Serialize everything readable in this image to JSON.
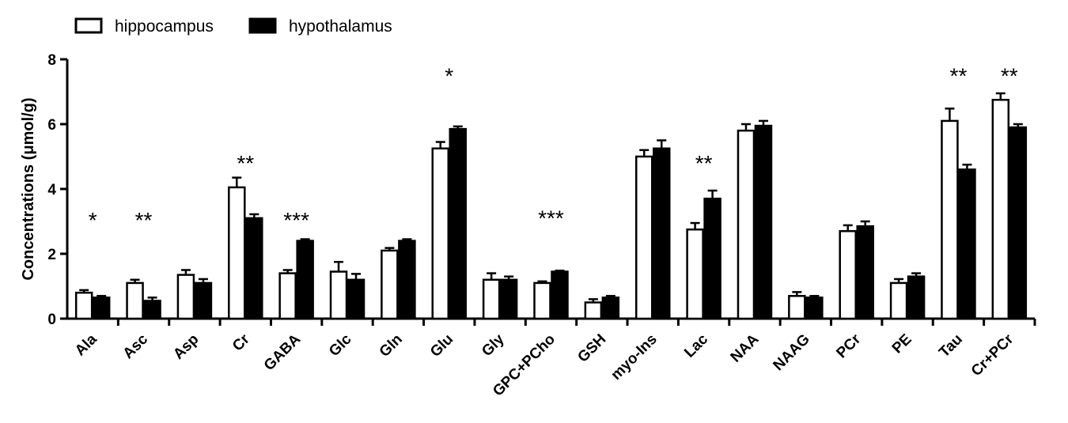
{
  "chart_data": {
    "type": "bar",
    "ylabel": "Concentrations (μmol/g)",
    "ylim": [
      0,
      8
    ],
    "yticks": [
      0,
      2,
      4,
      6,
      8
    ],
    "grid": false,
    "legend_position": "top-left",
    "categories": [
      "Ala",
      "Asc",
      "Asp",
      "Cr",
      "GABA",
      "Glc",
      "Gln",
      "Glu",
      "Gly",
      "GPC+PCho",
      "GSH",
      "myo-Ins",
      "Lac",
      "NAA",
      "NAAG",
      "PCr",
      "PE",
      "Tau",
      "Cr+PCr"
    ],
    "series": [
      {
        "name": "hippocampus",
        "fill": "#ffffff",
        "values": [
          0.8,
          1.1,
          1.35,
          4.05,
          1.4,
          1.45,
          2.1,
          5.25,
          1.2,
          1.1,
          0.5,
          5.0,
          2.75,
          5.8,
          0.7,
          2.7,
          1.1,
          6.1,
          6.75
        ],
        "errors": [
          0.08,
          0.1,
          0.15,
          0.3,
          0.1,
          0.3,
          0.08,
          0.2,
          0.2,
          0.05,
          0.1,
          0.2,
          0.2,
          0.2,
          0.12,
          0.18,
          0.12,
          0.38,
          0.2
        ]
      },
      {
        "name": "hypothalamus",
        "fill": "#000000",
        "values": [
          0.65,
          0.55,
          1.1,
          3.1,
          2.4,
          1.2,
          2.4,
          5.85,
          1.2,
          1.45,
          0.65,
          5.25,
          3.7,
          5.95,
          0.65,
          2.85,
          1.3,
          4.6,
          5.9
        ],
        "errors": [
          0.05,
          0.1,
          0.12,
          0.12,
          0.05,
          0.18,
          0.05,
          0.08,
          0.1,
          0.03,
          0.05,
          0.25,
          0.25,
          0.15,
          0.05,
          0.15,
          0.1,
          0.15,
          0.1
        ]
      }
    ],
    "annotations": [
      {
        "category": "Ala",
        "text": "*",
        "y": 3.25
      },
      {
        "category": "Asc",
        "text": "**",
        "y": 3.25
      },
      {
        "category": "Cr",
        "text": "**",
        "y": 5.0
      },
      {
        "category": "GABA",
        "text": "***",
        "y": 3.25
      },
      {
        "category": "Glu",
        "text": "*",
        "y": 7.7
      },
      {
        "category": "GPC+PCho",
        "text": "***",
        "y": 3.3
      },
      {
        "category": "Lac",
        "text": "**",
        "y": 5.0
      },
      {
        "category": "Tau",
        "text": "**",
        "y": 7.7
      },
      {
        "category": "Cr+PCr",
        "text": "**",
        "y": 7.7
      }
    ]
  }
}
